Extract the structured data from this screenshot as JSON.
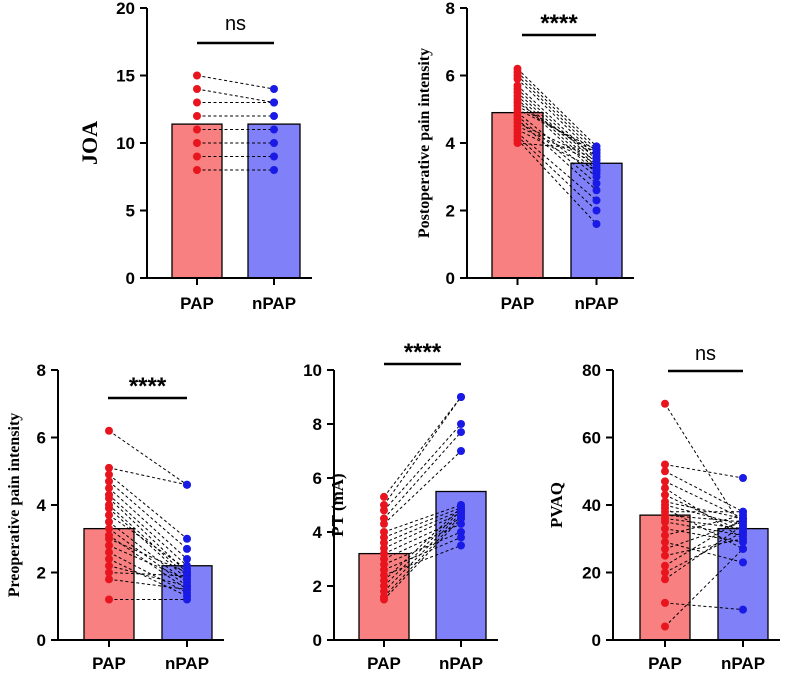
{
  "colors": {
    "pap_fill": "#F88080",
    "npap_fill": "#8080F8",
    "pap_dot": "#E8141E",
    "npap_dot": "#1A1AE6"
  },
  "chart_data": [
    {
      "id": "joa",
      "type": "bar",
      "ylabel": "JOA",
      "ylim": [
        0,
        20
      ],
      "yticks": [
        0,
        5,
        10,
        15,
        20
      ],
      "categories": [
        "PAP",
        "nPAP"
      ],
      "bar_means": [
        11.4,
        11.4
      ],
      "significance": "ns",
      "pairs": [
        [
          15,
          14
        ],
        [
          14,
          13
        ],
        [
          13,
          13
        ],
        [
          12,
          12
        ],
        [
          11,
          11
        ],
        [
          10,
          10
        ],
        [
          9,
          9
        ],
        [
          8,
          8
        ]
      ]
    },
    {
      "id": "postop",
      "type": "bar",
      "ylabel": "Postoperative pain intensity",
      "ylim": [
        0,
        8
      ],
      "yticks": [
        0,
        2,
        4,
        6,
        8
      ],
      "categories": [
        "PAP",
        "nPAP"
      ],
      "bar_means": [
        4.9,
        3.4
      ],
      "significance": "****",
      "pairs": [
        [
          6.2,
          3.9
        ],
        [
          6.1,
          3.8
        ],
        [
          6.0,
          3.7
        ],
        [
          5.9,
          3.6
        ],
        [
          5.7,
          3.5
        ],
        [
          5.6,
          3.4
        ],
        [
          5.5,
          3.3
        ],
        [
          5.4,
          3.2
        ],
        [
          5.3,
          3.1
        ],
        [
          5.2,
          3.6
        ],
        [
          5.1,
          3.7
        ],
        [
          5.0,
          3.8
        ],
        [
          4.9,
          3.0
        ],
        [
          4.8,
          2.8
        ],
        [
          4.7,
          2.6
        ],
        [
          4.6,
          3.5
        ],
        [
          4.5,
          3.4
        ],
        [
          4.4,
          3.2
        ],
        [
          4.3,
          2.3
        ],
        [
          4.2,
          2.0
        ],
        [
          4.1,
          1.6
        ],
        [
          4.0,
          3.8
        ]
      ]
    },
    {
      "id": "preop",
      "type": "bar",
      "ylabel": "Preoperative pain intensity",
      "ylim": [
        0,
        8
      ],
      "yticks": [
        0,
        2,
        4,
        6,
        8
      ],
      "categories": [
        "PAP",
        "nPAP"
      ],
      "bar_means": [
        3.3,
        2.2
      ],
      "significance": "****",
      "pairs": [
        [
          6.2,
          4.6
        ],
        [
          5.1,
          4.6
        ],
        [
          4.9,
          3.0
        ],
        [
          4.7,
          2.7
        ],
        [
          4.5,
          2.4
        ],
        [
          4.3,
          2.2
        ],
        [
          4.2,
          2.0
        ],
        [
          4.0,
          1.9
        ],
        [
          3.9,
          1.8
        ],
        [
          3.7,
          2.1
        ],
        [
          3.5,
          1.7
        ],
        [
          3.3,
          1.6
        ],
        [
          3.1,
          1.5
        ],
        [
          3.0,
          2.0
        ],
        [
          2.8,
          1.8
        ],
        [
          2.6,
          1.4
        ],
        [
          2.4,
          1.3
        ],
        [
          2.2,
          1.6
        ],
        [
          2.0,
          1.9
        ],
        [
          1.8,
          1.5
        ],
        [
          1.2,
          1.2
        ]
      ]
    },
    {
      "id": "pt",
      "type": "bar",
      "ylabel": "PT (mA)",
      "ylim": [
        0,
        10
      ],
      "yticks": [
        0,
        2,
        4,
        6,
        8,
        10
      ],
      "categories": [
        "PAP",
        "nPAP"
      ],
      "bar_means": [
        3.2,
        5.5
      ],
      "significance": "****",
      "pairs": [
        [
          5.3,
          9.0
        ],
        [
          5.0,
          9.0
        ],
        [
          4.8,
          8.0
        ],
        [
          4.5,
          7.7
        ],
        [
          4.3,
          7.0
        ],
        [
          4.0,
          5.0
        ],
        [
          3.8,
          4.9
        ],
        [
          3.6,
          4.8
        ],
        [
          3.4,
          4.7
        ],
        [
          3.2,
          4.5
        ],
        [
          3.0,
          4.3
        ],
        [
          2.8,
          4.0
        ],
        [
          2.6,
          3.8
        ],
        [
          2.4,
          3.5
        ],
        [
          2.2,
          4.9
        ],
        [
          2.0,
          4.8
        ],
        [
          1.8,
          4.7
        ],
        [
          1.6,
          4.6
        ],
        [
          1.5,
          4.5
        ]
      ]
    },
    {
      "id": "pvaq",
      "type": "bar",
      "ylabel": "PVAQ",
      "ylim": [
        0,
        80
      ],
      "yticks": [
        0,
        20,
        40,
        60,
        80
      ],
      "categories": [
        "PAP",
        "nPAP"
      ],
      "bar_means": [
        37,
        33
      ],
      "significance": "ns",
      "pairs": [
        [
          70,
          33
        ],
        [
          52,
          48
        ],
        [
          50,
          38
        ],
        [
          47,
          36
        ],
        [
          45,
          30
        ],
        [
          43,
          32
        ],
        [
          41,
          36
        ],
        [
          40,
          34
        ],
        [
          39,
          27
        ],
        [
          38,
          38
        ],
        [
          37,
          35
        ],
        [
          36,
          33
        ],
        [
          35,
          31
        ],
        [
          33,
          29
        ],
        [
          31,
          37
        ],
        [
          29,
          23
        ],
        [
          27,
          35
        ],
        [
          25,
          30
        ],
        [
          22,
          36
        ],
        [
          20,
          32
        ],
        [
          18,
          34
        ],
        [
          11,
          9
        ],
        [
          4,
          27
        ]
      ]
    }
  ]
}
